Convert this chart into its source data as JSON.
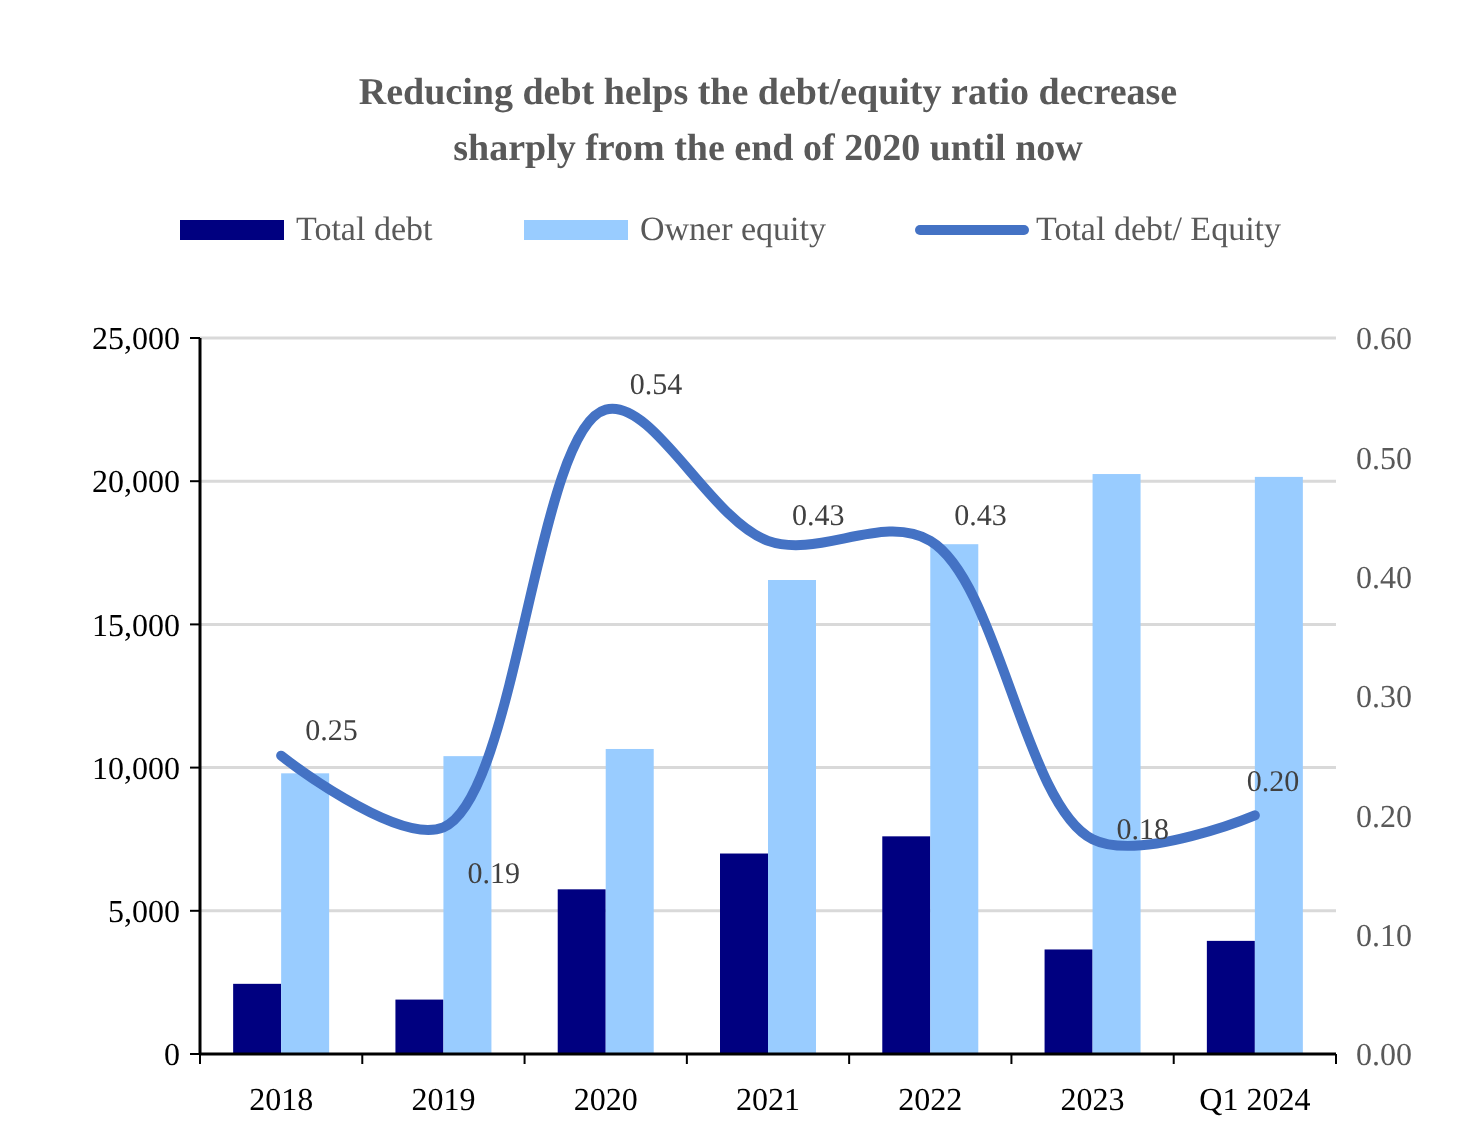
{
  "chart_data": {
    "type": "bar",
    "title": "Reducing debt helps the debt/equity ratio decrease sharply from the end of 2020 until now",
    "categories": [
      "2018",
      "2019",
      "2020",
      "2021",
      "2022",
      "2023",
      "Q1 2024"
    ],
    "series": [
      {
        "name": "Total debt",
        "color": "#000080",
        "values": [
          2450,
          1900,
          5750,
          7000,
          7600,
          3650,
          3950
        ]
      },
      {
        "name": "Owner equity",
        "color": "#99ccff",
        "values": [
          9800,
          10400,
          10650,
          16550,
          17800,
          20250,
          20150
        ]
      },
      {
        "name": "Total debt/ Equity",
        "type": "line",
        "axis": "y2",
        "color": "#4472c4",
        "values": [
          0.25,
          0.19,
          0.54,
          0.43,
          0.43,
          0.18,
          0.2
        ],
        "value_labels": [
          "0.25",
          "0.19",
          "0.54",
          "0.43",
          "0.43",
          "0.18",
          "0.20"
        ]
      }
    ],
    "ylim": [
      0,
      25000
    ],
    "yticks": [
      {
        "value": 0,
        "label": "0"
      },
      {
        "value": 5000,
        "label": "5,000"
      },
      {
        "value": 10000,
        "label": "10,000"
      },
      {
        "value": 15000,
        "label": "15,000"
      },
      {
        "value": 20000,
        "label": "20,000"
      },
      {
        "value": 25000,
        "label": "25,000"
      }
    ],
    "y2lim": [
      0,
      0.6
    ],
    "y2ticks": [
      {
        "value": 0,
        "label": "0.00"
      },
      {
        "value": 0.1,
        "label": "0.10"
      },
      {
        "value": 0.2,
        "label": "0.20"
      },
      {
        "value": 0.3,
        "label": "0.30"
      },
      {
        "value": 0.4,
        "label": "0.40"
      },
      {
        "value": 0.5,
        "label": "0.50"
      },
      {
        "value": 0.6,
        "label": "0.60"
      }
    ],
    "grid": "y",
    "legend": "top",
    "marker": "none",
    "line_style": "solid"
  }
}
